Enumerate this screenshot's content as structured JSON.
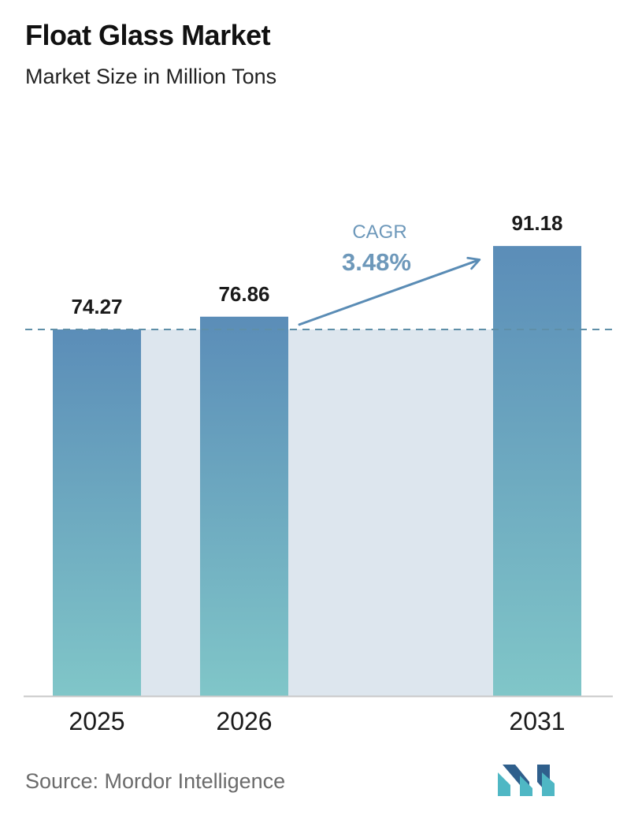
{
  "header": {
    "title": "Float Glass Market",
    "subtitle": "Market Size in Million Tons"
  },
  "chart_data": {
    "type": "bar",
    "categories": [
      "2025",
      "2026",
      "2031"
    ],
    "values": [
      74.27,
      76.86,
      91.18
    ],
    "value_labels": [
      "74.27",
      "76.86",
      "91.18"
    ],
    "title": "Float Glass Market",
    "subtitle": "Market Size in Million Tons",
    "xlabel": "",
    "ylabel": "",
    "grid": false,
    "legend": "none",
    "baseline_reference_value": 74.27,
    "annotation": {
      "label": "CAGR",
      "value": "3.48%"
    }
  },
  "footer": {
    "source": "Source:  Mordor Intelligence"
  },
  "colors": {
    "bar_top": "#5b8db8",
    "bar_bottom": "#80c6c8",
    "band_fill": "#dde6ee",
    "reference_line": "#5f8fa8",
    "cagr_text": "#6d98ba",
    "arrow": "#5a8cb5",
    "axis": "#c8c8c8",
    "logo_dark": "#2f5f8c",
    "logo_light": "#4fb7c4"
  },
  "icons": {
    "logo": "mordor-intelligence-logo-icon"
  }
}
